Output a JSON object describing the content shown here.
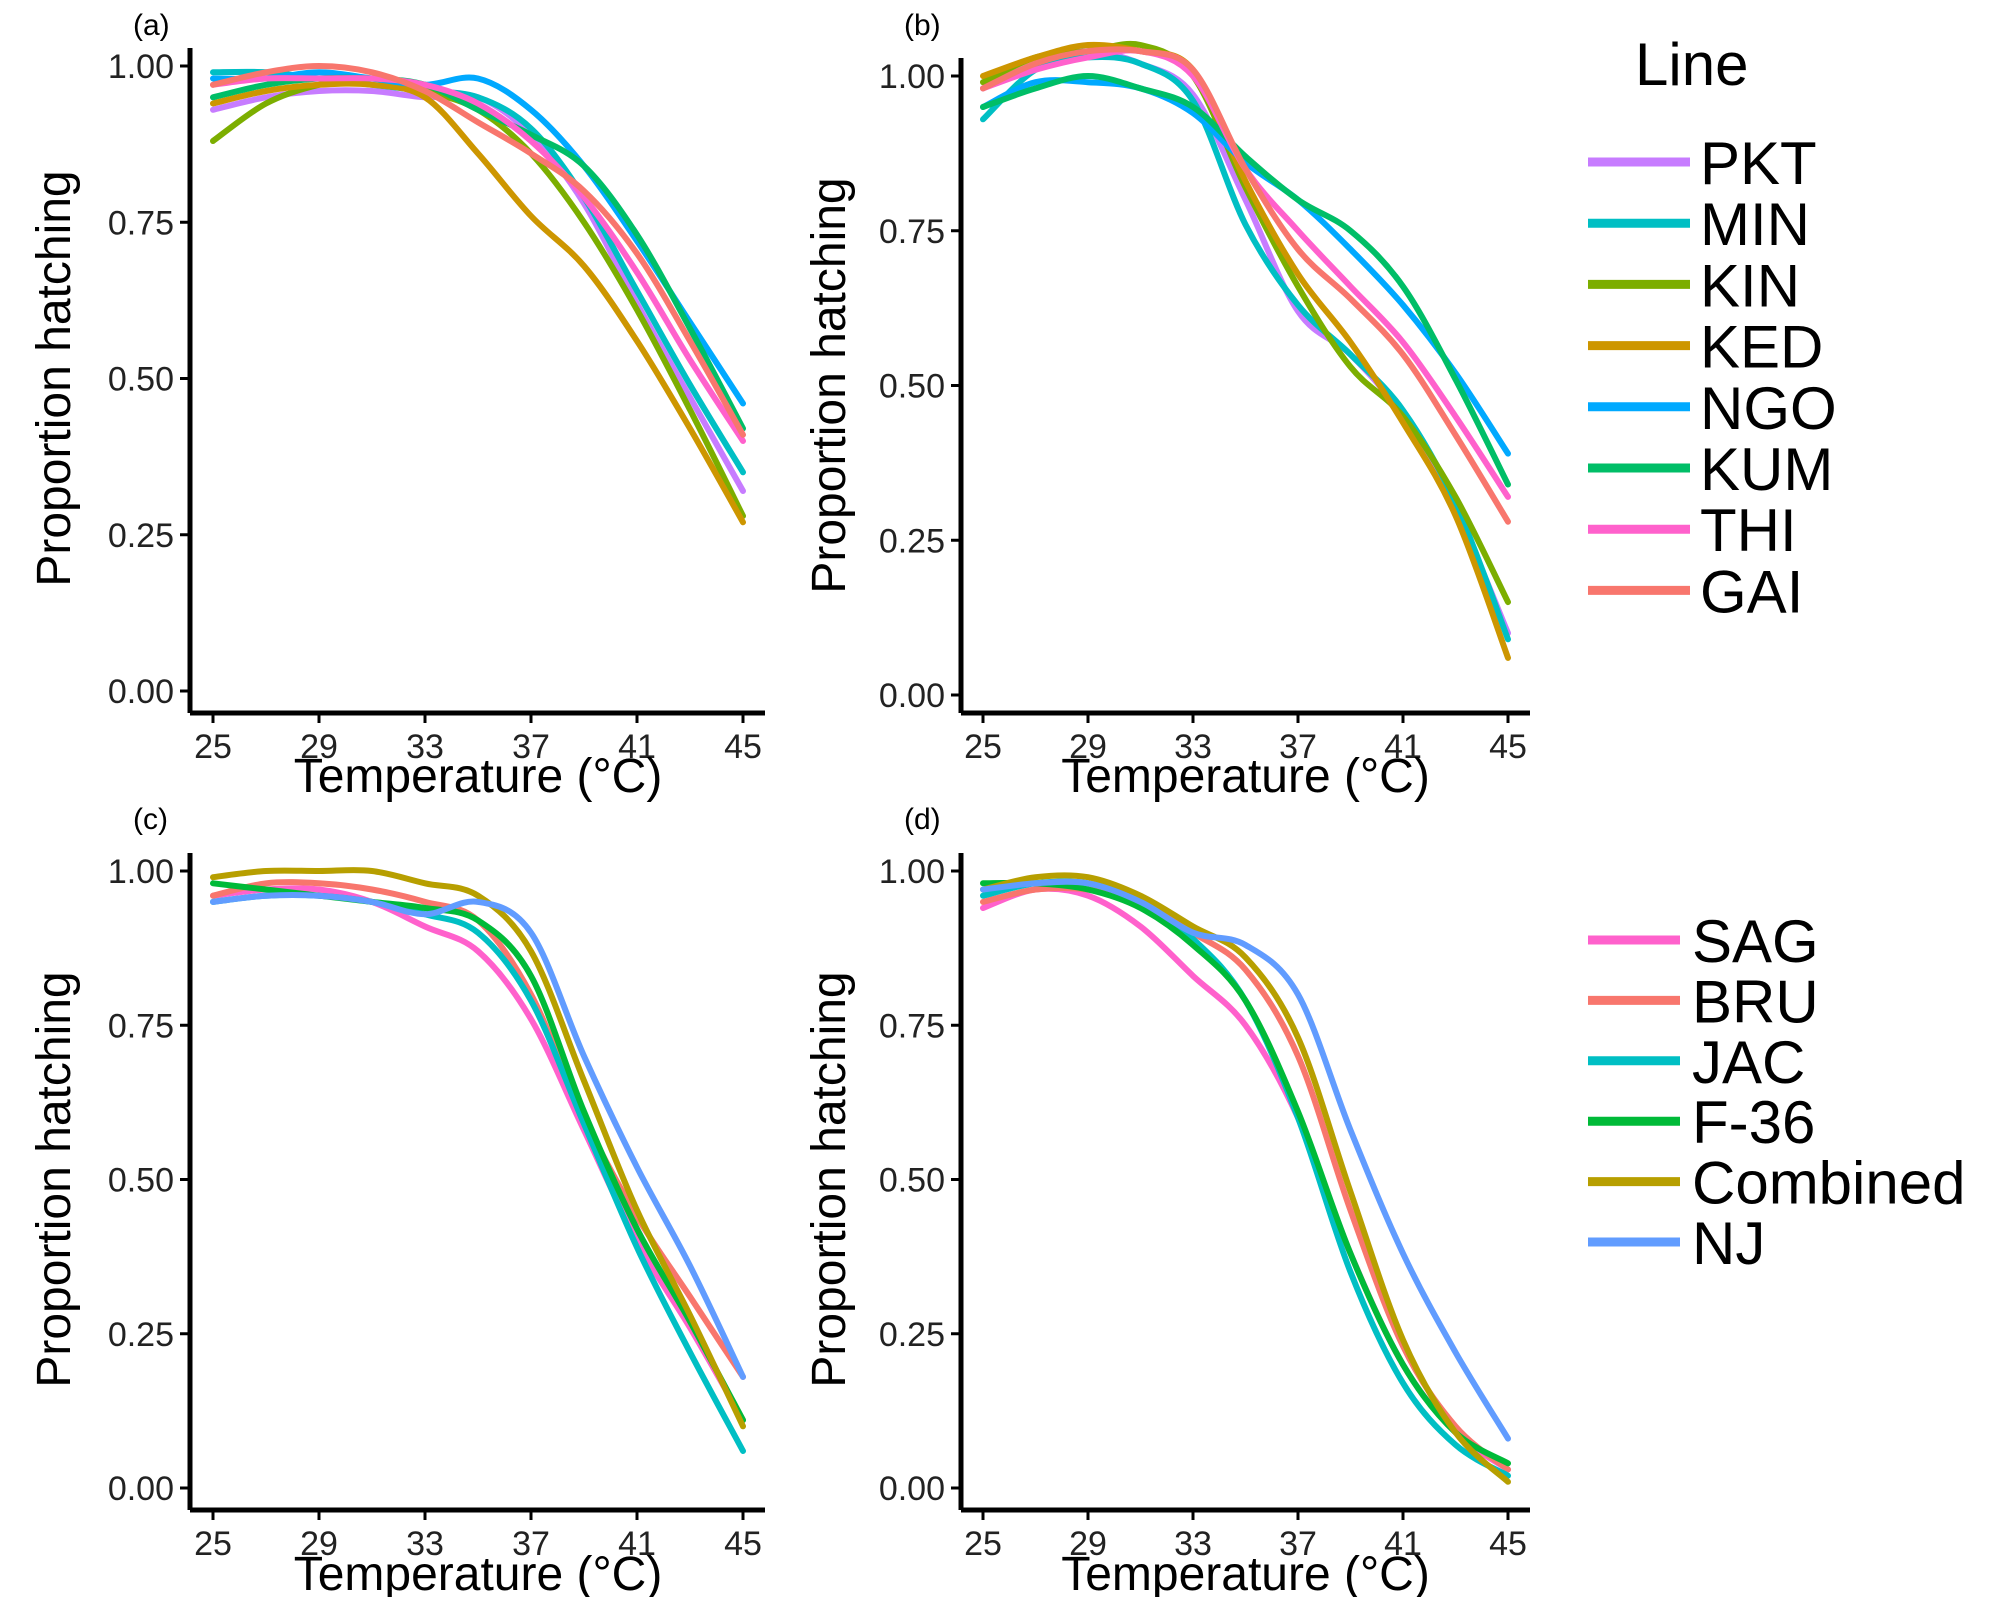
{
  "chart_data": [
    {
      "type": "line",
      "panel_label": "(a)",
      "xlabel": "Temperature (°C)",
      "ylabel": "Proportion hatching",
      "xlim": [
        25,
        45
      ],
      "ylim": [
        0,
        1
      ],
      "xticks": [
        "25",
        "29",
        "33",
        "37",
        "41",
        "45"
      ],
      "yticks": [
        "0.00",
        "0.25",
        "0.50",
        "0.75",
        "1.00"
      ],
      "x": [
        25,
        27,
        29,
        31,
        33,
        35,
        37,
        39,
        41,
        43,
        45
      ],
      "series": [
        {
          "name": "PKT",
          "color": "#C77CFF",
          "values": [
            0.93,
            0.95,
            0.96,
            0.96,
            0.95,
            0.95,
            0.89,
            0.78,
            0.62,
            0.47,
            0.32
          ]
        },
        {
          "name": "MIN",
          "color": "#00BFC4",
          "values": [
            0.99,
            0.99,
            0.98,
            0.97,
            0.96,
            0.95,
            0.9,
            0.79,
            0.64,
            0.49,
            0.35
          ]
        },
        {
          "name": "KIN",
          "color": "#7CAE00",
          "values": [
            0.88,
            0.94,
            0.97,
            0.98,
            0.96,
            0.93,
            0.86,
            0.75,
            0.61,
            0.45,
            0.28
          ]
        },
        {
          "name": "KED",
          "color": "#CD9600",
          "values": [
            0.94,
            0.96,
            0.97,
            0.97,
            0.95,
            0.86,
            0.76,
            0.68,
            0.56,
            0.42,
            0.27
          ]
        },
        {
          "name": "NGO",
          "color": "#00A9FF",
          "values": [
            0.98,
            0.98,
            0.99,
            0.98,
            0.97,
            0.98,
            0.93,
            0.84,
            0.72,
            0.59,
            0.46
          ]
        },
        {
          "name": "KUM",
          "color": "#00BE67",
          "values": [
            0.95,
            0.97,
            0.98,
            0.98,
            0.97,
            0.93,
            0.89,
            0.84,
            0.73,
            0.58,
            0.42
          ]
        },
        {
          "name": "THI",
          "color": "#FF61CC",
          "values": [
            0.97,
            0.98,
            0.98,
            0.98,
            0.97,
            0.94,
            0.88,
            0.79,
            0.67,
            0.53,
            0.4
          ]
        },
        {
          "name": "GAI",
          "color": "#F8766D",
          "values": [
            0.97,
            0.99,
            1.0,
            0.99,
            0.96,
            0.91,
            0.86,
            0.8,
            0.7,
            0.56,
            0.41
          ]
        }
      ]
    },
    {
      "type": "line",
      "panel_label": "(b)",
      "xlabel": "Temperature (°C)",
      "ylabel": "Proportion hatching",
      "xlim": [
        25,
        45
      ],
      "ylim": [
        0,
        1
      ],
      "xticks": [
        "25",
        "29",
        "33",
        "37",
        "41",
        "45"
      ],
      "yticks": [
        "0.00",
        "0.25",
        "0.50",
        "0.75",
        "1.00"
      ],
      "x": [
        25,
        27,
        29,
        31,
        33,
        35,
        37,
        39,
        41,
        43,
        45
      ],
      "series": [
        {
          "name": "PKT",
          "color": "#C77CFF",
          "values": [
            0.98,
            1.02,
            1.04,
            1.02,
            0.97,
            0.8,
            0.62,
            0.55,
            0.45,
            0.3,
            0.1
          ]
        },
        {
          "name": "MIN",
          "color": "#00BFC4",
          "values": [
            0.93,
            1.01,
            1.03,
            1.02,
            0.96,
            0.76,
            0.63,
            0.55,
            0.46,
            0.31,
            0.09
          ]
        },
        {
          "name": "KIN",
          "color": "#7CAE00",
          "values": [
            0.99,
            1.03,
            1.04,
            1.05,
            1.0,
            0.82,
            0.66,
            0.53,
            0.45,
            0.32,
            0.15
          ]
        },
        {
          "name": "KED",
          "color": "#CD9600",
          "values": [
            1.0,
            1.03,
            1.05,
            1.04,
            1.01,
            0.83,
            0.68,
            0.57,
            0.44,
            0.29,
            0.06
          ]
        },
        {
          "name": "NGO",
          "color": "#00A9FF",
          "values": [
            0.95,
            0.99,
            0.99,
            0.98,
            0.94,
            0.86,
            0.8,
            0.72,
            0.63,
            0.52,
            0.39
          ]
        },
        {
          "name": "KUM",
          "color": "#00BE67",
          "values": [
            0.95,
            0.98,
            1.0,
            0.98,
            0.95,
            0.87,
            0.8,
            0.75,
            0.66,
            0.51,
            0.34
          ]
        },
        {
          "name": "THI",
          "color": "#FF61CC",
          "values": [
            0.98,
            1.01,
            1.03,
            1.04,
            1.0,
            0.85,
            0.75,
            0.66,
            0.57,
            0.45,
            0.32
          ]
        },
        {
          "name": "GAI",
          "color": "#F8766D",
          "values": [
            0.98,
            1.02,
            1.04,
            1.04,
            1.01,
            0.85,
            0.72,
            0.64,
            0.55,
            0.42,
            0.28
          ]
        }
      ]
    },
    {
      "type": "line",
      "panel_label": "(c)",
      "xlabel": "Temperature (°C)",
      "ylabel": "Proportion hatching",
      "xlim": [
        25,
        45
      ],
      "ylim": [
        0,
        1
      ],
      "xticks": [
        "25",
        "29",
        "33",
        "37",
        "41",
        "45"
      ],
      "yticks": [
        "0.00",
        "0.25",
        "0.50",
        "0.75",
        "1.00"
      ],
      "x": [
        25,
        27,
        29,
        31,
        33,
        35,
        37,
        39,
        41,
        43,
        45
      ],
      "series": [
        {
          "name": "SAG",
          "color": "#FF61CC",
          "values": [
            0.96,
            0.97,
            0.97,
            0.95,
            0.91,
            0.87,
            0.76,
            0.58,
            0.4,
            0.26,
            0.11
          ]
        },
        {
          "name": "BRU",
          "color": "#F8766D",
          "values": [
            0.96,
            0.98,
            0.98,
            0.97,
            0.95,
            0.92,
            0.8,
            0.6,
            0.44,
            0.31,
            0.18
          ]
        },
        {
          "name": "JAC",
          "color": "#00BFC4",
          "values": [
            0.95,
            0.96,
            0.96,
            0.95,
            0.93,
            0.9,
            0.79,
            0.59,
            0.39,
            0.22,
            0.06
          ]
        },
        {
          "name": "F-36",
          "color": "#00BA38",
          "values": [
            0.98,
            0.97,
            0.96,
            0.95,
            0.94,
            0.92,
            0.83,
            0.61,
            0.42,
            0.27,
            0.11
          ]
        },
        {
          "name": "Combined",
          "color": "#B79F00",
          "values": [
            0.99,
            1.0,
            1.0,
            1.0,
            0.98,
            0.96,
            0.87,
            0.66,
            0.45,
            0.28,
            0.1
          ]
        },
        {
          "name": "NJ",
          "color": "#619CFF",
          "values": [
            0.95,
            0.96,
            0.96,
            0.95,
            0.93,
            0.95,
            0.9,
            0.7,
            0.52,
            0.36,
            0.18
          ]
        }
      ]
    },
    {
      "type": "line",
      "panel_label": "(d)",
      "xlabel": "Temperature (°C)",
      "ylabel": "Proportion hatching",
      "xlim": [
        25,
        45
      ],
      "ylim": [
        0,
        1
      ],
      "xticks": [
        "25",
        "29",
        "33",
        "37",
        "41",
        "45"
      ],
      "yticks": [
        "0.00",
        "0.25",
        "0.50",
        "0.75",
        "1.00"
      ],
      "x": [
        25,
        27,
        29,
        31,
        33,
        35,
        37,
        39,
        41,
        43,
        45
      ],
      "series": [
        {
          "name": "SAG",
          "color": "#FF61CC",
          "values": [
            0.94,
            0.97,
            0.96,
            0.91,
            0.83,
            0.75,
            0.6,
            0.38,
            0.2,
            0.09,
            0.03
          ]
        },
        {
          "name": "BRU",
          "color": "#F8766D",
          "values": [
            0.95,
            0.97,
            0.97,
            0.95,
            0.9,
            0.84,
            0.7,
            0.45,
            0.23,
            0.1,
            0.03
          ]
        },
        {
          "name": "JAC",
          "color": "#00BFC4",
          "values": [
            0.96,
            0.98,
            0.98,
            0.95,
            0.89,
            0.79,
            0.6,
            0.35,
            0.17,
            0.07,
            0.02
          ]
        },
        {
          "name": "F-36",
          "color": "#00BA38",
          "values": [
            0.98,
            0.98,
            0.97,
            0.94,
            0.88,
            0.79,
            0.61,
            0.38,
            0.2,
            0.09,
            0.04
          ]
        },
        {
          "name": "Combined",
          "color": "#B79F00",
          "values": [
            0.97,
            0.99,
            0.99,
            0.96,
            0.91,
            0.86,
            0.73,
            0.48,
            0.24,
            0.09,
            0.01
          ]
        },
        {
          "name": "NJ",
          "color": "#619CFF",
          "values": [
            0.97,
            0.98,
            0.98,
            0.95,
            0.9,
            0.88,
            0.8,
            0.58,
            0.38,
            0.22,
            0.08
          ]
        }
      ]
    }
  ],
  "legend_top": {
    "title": "Line",
    "items": [
      {
        "label": "PKT",
        "color": "#C77CFF"
      },
      {
        "label": "MIN",
        "color": "#00BFC4"
      },
      {
        "label": "KIN",
        "color": "#7CAE00"
      },
      {
        "label": "KED",
        "color": "#CD9600"
      },
      {
        "label": "NGO",
        "color": "#00A9FF"
      },
      {
        "label": "KUM",
        "color": "#00BE67"
      },
      {
        "label": "THI",
        "color": "#FF61CC"
      },
      {
        "label": "GAI",
        "color": "#F8766D"
      }
    ]
  },
  "legend_bottom": {
    "items": [
      {
        "label": "SAG",
        "color": "#FF61CC"
      },
      {
        "label": "BRU",
        "color": "#F8766D"
      },
      {
        "label": "JAC",
        "color": "#00BFC4"
      },
      {
        "label": "F-36",
        "color": "#00BA38"
      },
      {
        "label": "Combined",
        "color": "#B79F00"
      },
      {
        "label": "NJ",
        "color": "#619CFF"
      }
    ]
  }
}
